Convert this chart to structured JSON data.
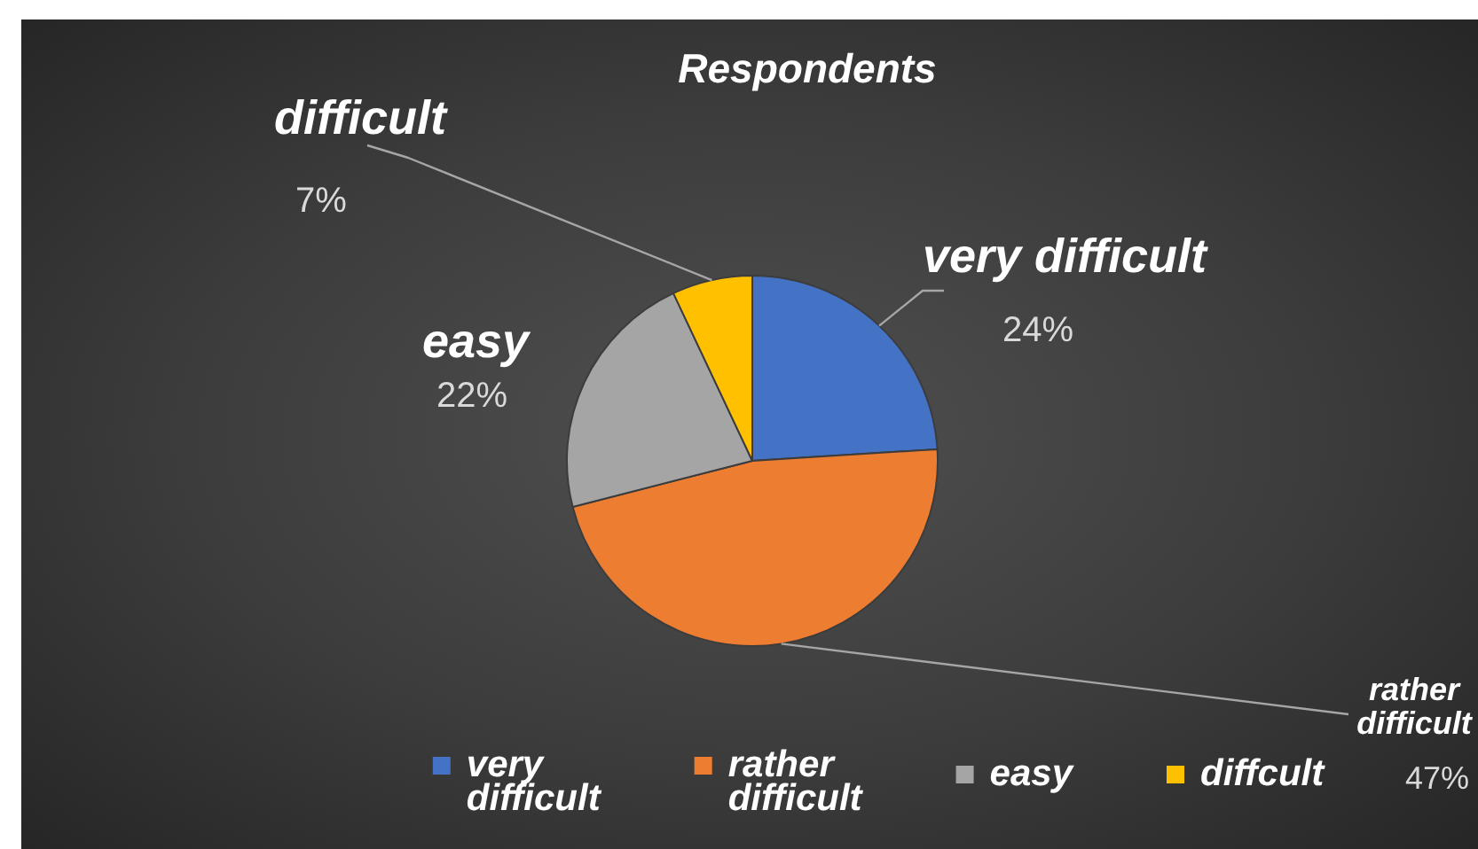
{
  "chart_data": {
    "type": "pie",
    "title": "Respondents",
    "categories": [
      "very difficult",
      "rather difficult",
      "easy",
      "diffcult"
    ],
    "values": [
      24,
      47,
      22,
      7
    ],
    "colors": [
      "#4472c4",
      "#ed7d31",
      "#a5a5a5",
      "#ffc000"
    ],
    "value_labels": [
      "very difficult 24%",
      "rather difficult 47%",
      "easy 22%",
      "difficult 7%"
    ],
    "legend": "bottom"
  }
}
